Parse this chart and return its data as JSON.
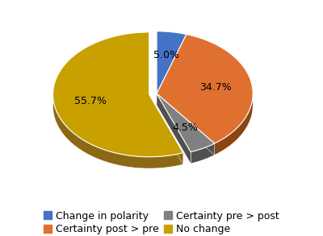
{
  "labels": [
    "Change in polarity",
    "Certainty post > pre",
    "Certainty pre > post",
    "No change"
  ],
  "values": [
    5.0,
    34.7,
    4.5,
    55.7
  ],
  "colors": [
    "#4472C4",
    "#E07030",
    "#808080",
    "#C8A000"
  ],
  "dark_colors": [
    "#2A5090",
    "#8B4513",
    "#505050",
    "#8B6914"
  ],
  "startangle": 90,
  "autopct_fontsize": 9,
  "legend_fontsize": 9,
  "figsize": [
    4.0,
    2.93
  ],
  "dpi": 100,
  "wedge_edge_color": "white",
  "explode_index": 3,
  "explode_amount": 0.08,
  "depth": 0.12,
  "ellipse_ratio": 0.35
}
